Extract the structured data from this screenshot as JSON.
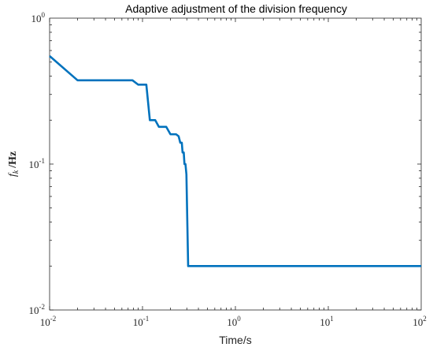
{
  "chart_data": {
    "type": "line",
    "title": "Adaptive adjustment of the division frequency",
    "xlabel": "Time/s",
    "ylabel_main": "f",
    "ylabel_sub": "k",
    "ylabel_unit": "/Hz",
    "xscale": "log",
    "yscale": "log",
    "xlim": [
      0.01,
      100
    ],
    "ylim": [
      0.01,
      1
    ],
    "grid": false,
    "x_ticks": [
      {
        "base": "10",
        "exp": "-2",
        "value": 0.01
      },
      {
        "base": "10",
        "exp": "-1",
        "value": 0.1
      },
      {
        "base": "10",
        "exp": "0",
        "value": 1
      },
      {
        "base": "10",
        "exp": "1",
        "value": 10
      },
      {
        "base": "10",
        "exp": "2",
        "value": 100
      }
    ],
    "y_ticks": [
      {
        "base": "10",
        "exp": "-2",
        "value": 0.01
      },
      {
        "base": "10",
        "exp": "-1",
        "value": 0.1
      },
      {
        "base": "10",
        "exp": "0",
        "value": 1
      }
    ],
    "series": [
      {
        "color": "#0072BD",
        "x": [
          0.01,
          0.02,
          0.078,
          0.09,
          0.11,
          0.12,
          0.124,
          0.137,
          0.15,
          0.18,
          0.2,
          0.23,
          0.245,
          0.255,
          0.265,
          0.27,
          0.278,
          0.283,
          0.29,
          0.297,
          0.31,
          1,
          10,
          100
        ],
        "y": [
          0.55,
          0.375,
          0.375,
          0.35,
          0.35,
          0.2,
          0.2,
          0.2,
          0.18,
          0.18,
          0.16,
          0.16,
          0.155,
          0.14,
          0.14,
          0.12,
          0.12,
          0.1,
          0.1,
          0.085,
          0.02,
          0.02,
          0.02,
          0.02
        ]
      }
    ]
  }
}
